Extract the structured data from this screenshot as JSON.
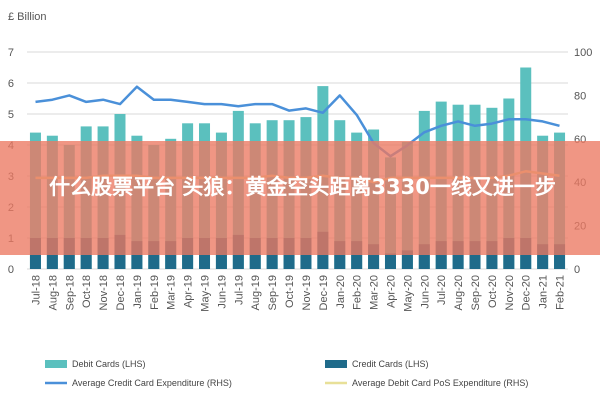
{
  "chart_data": {
    "type": "bar",
    "left_axis_unit": "£ Billion",
    "categories": [
      "Jul-18",
      "Aug-18",
      "Sep-18",
      "Oct-18",
      "Nov-18",
      "Dec-18",
      "Jan-19",
      "Feb-19",
      "Mar-19",
      "Apr-19",
      "May-19",
      "Jun-19",
      "Jul-19",
      "Aug-19",
      "Sep-19",
      "Oct-19",
      "Nov-19",
      "Dec-19",
      "Jan-20",
      "Feb-20",
      "Mar-20",
      "Apr-20",
      "May-20",
      "Jun-20",
      "Jul-20",
      "Aug-20",
      "Sep-20",
      "Oct-20",
      "Nov-20",
      "Dec-20",
      "Jan-21",
      "Feb-21"
    ],
    "left_ylim": [
      0,
      7
    ],
    "left_ticks": [
      0,
      1,
      2,
      3,
      4,
      5,
      6,
      7
    ],
    "right_ylim": [
      0,
      100
    ],
    "right_ticks": [
      0,
      20,
      40,
      60,
      80,
      100
    ],
    "grid": true,
    "legend_position": "bottom",
    "series": [
      {
        "name": "Debit Cards (LHS)",
        "kind": "bar",
        "axis": "left",
        "color": "#5bc0be",
        "values": [
          4.4,
          4.3,
          4.0,
          4.6,
          4.6,
          5.0,
          4.3,
          4.0,
          4.2,
          4.7,
          4.7,
          4.4,
          5.1,
          4.7,
          4.8,
          4.8,
          4.9,
          5.9,
          4.8,
          4.4,
          4.5,
          3.6,
          4.1,
          5.1,
          5.4,
          5.3,
          5.3,
          5.2,
          5.5,
          6.5,
          4.3,
          4.4
        ]
      },
      {
        "name": "Credit Cards (LHS)",
        "kind": "bar",
        "axis": "left",
        "color": "#1f6b8a",
        "values": [
          1.0,
          1.0,
          1.0,
          1.0,
          1.0,
          1.1,
          0.9,
          0.9,
          0.9,
          1.0,
          1.0,
          1.0,
          1.1,
          1.0,
          1.0,
          1.0,
          1.0,
          1.2,
          0.9,
          0.9,
          0.8,
          0.5,
          0.6,
          0.8,
          0.9,
          0.9,
          0.9,
          0.9,
          1.0,
          1.0,
          0.8,
          0.8
        ]
      },
      {
        "name": "Average Credit Card Expenditure (RHS)",
        "kind": "line",
        "axis": "right",
        "color": "#4a90d9",
        "values": [
          77,
          78,
          80,
          77,
          78,
          76,
          84,
          78,
          78,
          77,
          76,
          76,
          75,
          76,
          76,
          73,
          74,
          72,
          80,
          71,
          58,
          52,
          57,
          63,
          66,
          68,
          66,
          67,
          69,
          69,
          68,
          66
        ]
      },
      {
        "name": "Average Debit Card PoS Expenditure (RHS)",
        "kind": "line",
        "axis": "right",
        "color": "#e8e098",
        "values": [
          42,
          42,
          42,
          42,
          43,
          43,
          43,
          42,
          42,
          42,
          42,
          42,
          42,
          42,
          43,
          42,
          42,
          43,
          42,
          42,
          40,
          42,
          42,
          42,
          42,
          42,
          42,
          42,
          43,
          45,
          44,
          43
        ]
      }
    ]
  },
  "overlay": {
    "text": "什么股票平台 头狼：黄金空头距离3330一线又进一步"
  },
  "colors": {
    "grid": "#d9d9d9",
    "overlay": "#ec7862"
  }
}
